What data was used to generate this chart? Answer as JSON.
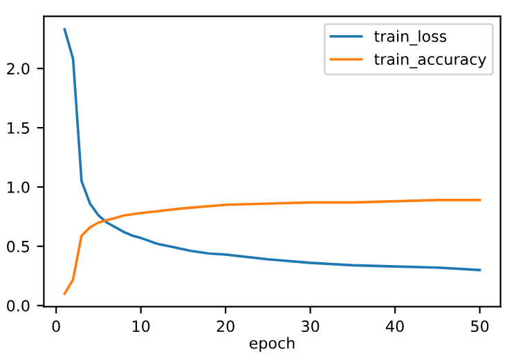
{
  "chart_data": {
    "type": "line",
    "xlabel": "epoch",
    "series": [
      {
        "name": "train_loss",
        "color": "#1f77b4",
        "x": [
          1,
          2,
          3,
          4,
          5,
          6,
          7,
          8,
          9,
          10,
          12,
          14,
          16,
          18,
          20,
          25,
          30,
          35,
          40,
          45,
          50
        ],
        "values": [
          2.33,
          2.08,
          1.05,
          0.86,
          0.76,
          0.7,
          0.66,
          0.62,
          0.59,
          0.57,
          0.52,
          0.49,
          0.46,
          0.44,
          0.43,
          0.39,
          0.36,
          0.34,
          0.33,
          0.32,
          0.3
        ]
      },
      {
        "name": "train_accuracy",
        "color": "#ff7f0e",
        "x": [
          1,
          2,
          3,
          4,
          5,
          6,
          7,
          8,
          10,
          15,
          20,
          25,
          30,
          35,
          40,
          45,
          50
        ],
        "values": [
          0.1,
          0.22,
          0.59,
          0.66,
          0.7,
          0.72,
          0.74,
          0.76,
          0.78,
          0.82,
          0.85,
          0.86,
          0.87,
          0.87,
          0.88,
          0.89,
          0.89
        ]
      }
    ],
    "xlim": [
      -1.45,
      52.45
    ],
    "ylim": [
      -0.01,
      2.44
    ],
    "xticks": [
      0,
      10,
      20,
      30,
      40,
      50
    ],
    "yticks": [
      {
        "value": 0,
        "label": "0.0"
      },
      0.5,
      {
        "value": 1,
        "label": "1.0"
      },
      1.5,
      {
        "value": 2,
        "label": "2.0"
      }
    ],
    "legend": "top right",
    "grid": false
  }
}
